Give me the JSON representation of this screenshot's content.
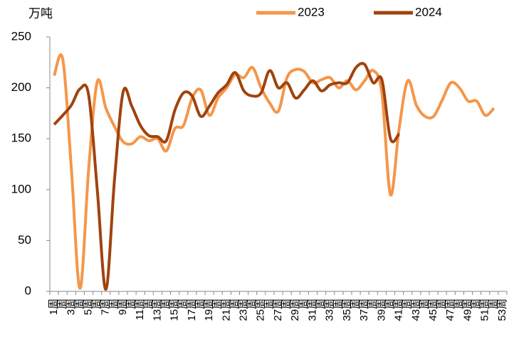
{
  "chart_data": {
    "type": "line",
    "y_label": "万吨",
    "categories": [
      "1周",
      "周",
      "3周",
      "周",
      "5周",
      "周",
      "7周",
      "周",
      "9周",
      "周",
      "11周",
      "周",
      "13周",
      "周",
      "15周",
      "周",
      "17周",
      "周",
      "19周",
      "周",
      "21周",
      "周",
      "23周",
      "周",
      "25周",
      "周",
      "27周",
      "周",
      "29周",
      "周",
      "31周",
      "周",
      "33周",
      "周",
      "35周",
      "周",
      "37周",
      "周",
      "39周",
      "周",
      "41周",
      "周",
      "43周",
      "周",
      "45周",
      "周",
      "47周",
      "周",
      "49周",
      "周",
      "51周",
      "周",
      "53周"
    ],
    "series": [
      {
        "name": "2023",
        "color": "#f5964a",
        "values": [
          212,
          228,
          120,
          3,
          120,
          206,
          180,
          162,
          147,
          145,
          152,
          148,
          150,
          138,
          160,
          163,
          190,
          198,
          173,
          190,
          200,
          213,
          210,
          220,
          200,
          185,
          177,
          210,
          218,
          216,
          205,
          208,
          210,
          200,
          207,
          198,
          207,
          217,
          195,
          95,
          160,
          207,
          183,
          172,
          172,
          188,
          205,
          200,
          187,
          187,
          173,
          180,
          null
        ]
      },
      {
        "name": "2024",
        "color": "#a0430e",
        "values": [
          164,
          173,
          183,
          199,
          193,
          100,
          2,
          110,
          196,
          182,
          163,
          153,
          152,
          148,
          178,
          195,
          192,
          172,
          182,
          195,
          203,
          215,
          197,
          192,
          195,
          217,
          200,
          205,
          190,
          198,
          207,
          197,
          203,
          205,
          205,
          220,
          223,
          205,
          208,
          150,
          155,
          null,
          null,
          null,
          null,
          null,
          null,
          null,
          null,
          null,
          null,
          null,
          null
        ]
      }
    ],
    "ylim": [
      0,
      250
    ],
    "yticks": [
      0,
      50,
      100,
      150,
      200,
      250
    ]
  }
}
